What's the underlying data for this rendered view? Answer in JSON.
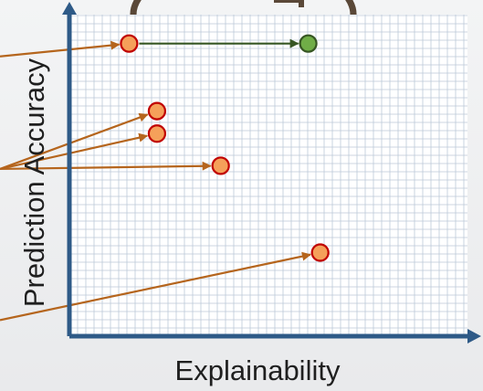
{
  "axes": {
    "x_label": "Explainability",
    "y_label": "Prediction Accuracy",
    "axis_color": "#2e5a87"
  },
  "grid": {
    "on": true,
    "color": "#bcc9d8",
    "background": "#ffffff"
  },
  "colors": {
    "orange_fill": "#f5a05a",
    "orange_stroke": "#c00000",
    "green_fill": "#70ad47",
    "green_stroke": "#375623",
    "arrow_orange": "#b5651d",
    "arrow_green": "#375623"
  },
  "chart_data": {
    "type": "scatter",
    "title": "",
    "xlabel": "Explainability",
    "ylabel": "Prediction Accuracy",
    "series": [
      {
        "color": "orange",
        "points": [
          {
            "x": 0.15,
            "y": 0.91
          },
          {
            "x": 0.22,
            "y": 0.7
          },
          {
            "x": 0.22,
            "y": 0.63
          },
          {
            "x": 0.38,
            "y": 0.53
          },
          {
            "x": 0.63,
            "y": 0.26
          }
        ]
      },
      {
        "color": "green",
        "points": [
          {
            "x": 0.6,
            "y": 0.91
          }
        ]
      }
    ],
    "transitions": [
      {
        "from": {
          "x": 0.15,
          "y": 0.91
        },
        "to": {
          "x": 0.6,
          "y": 0.91
        }
      }
    ]
  }
}
